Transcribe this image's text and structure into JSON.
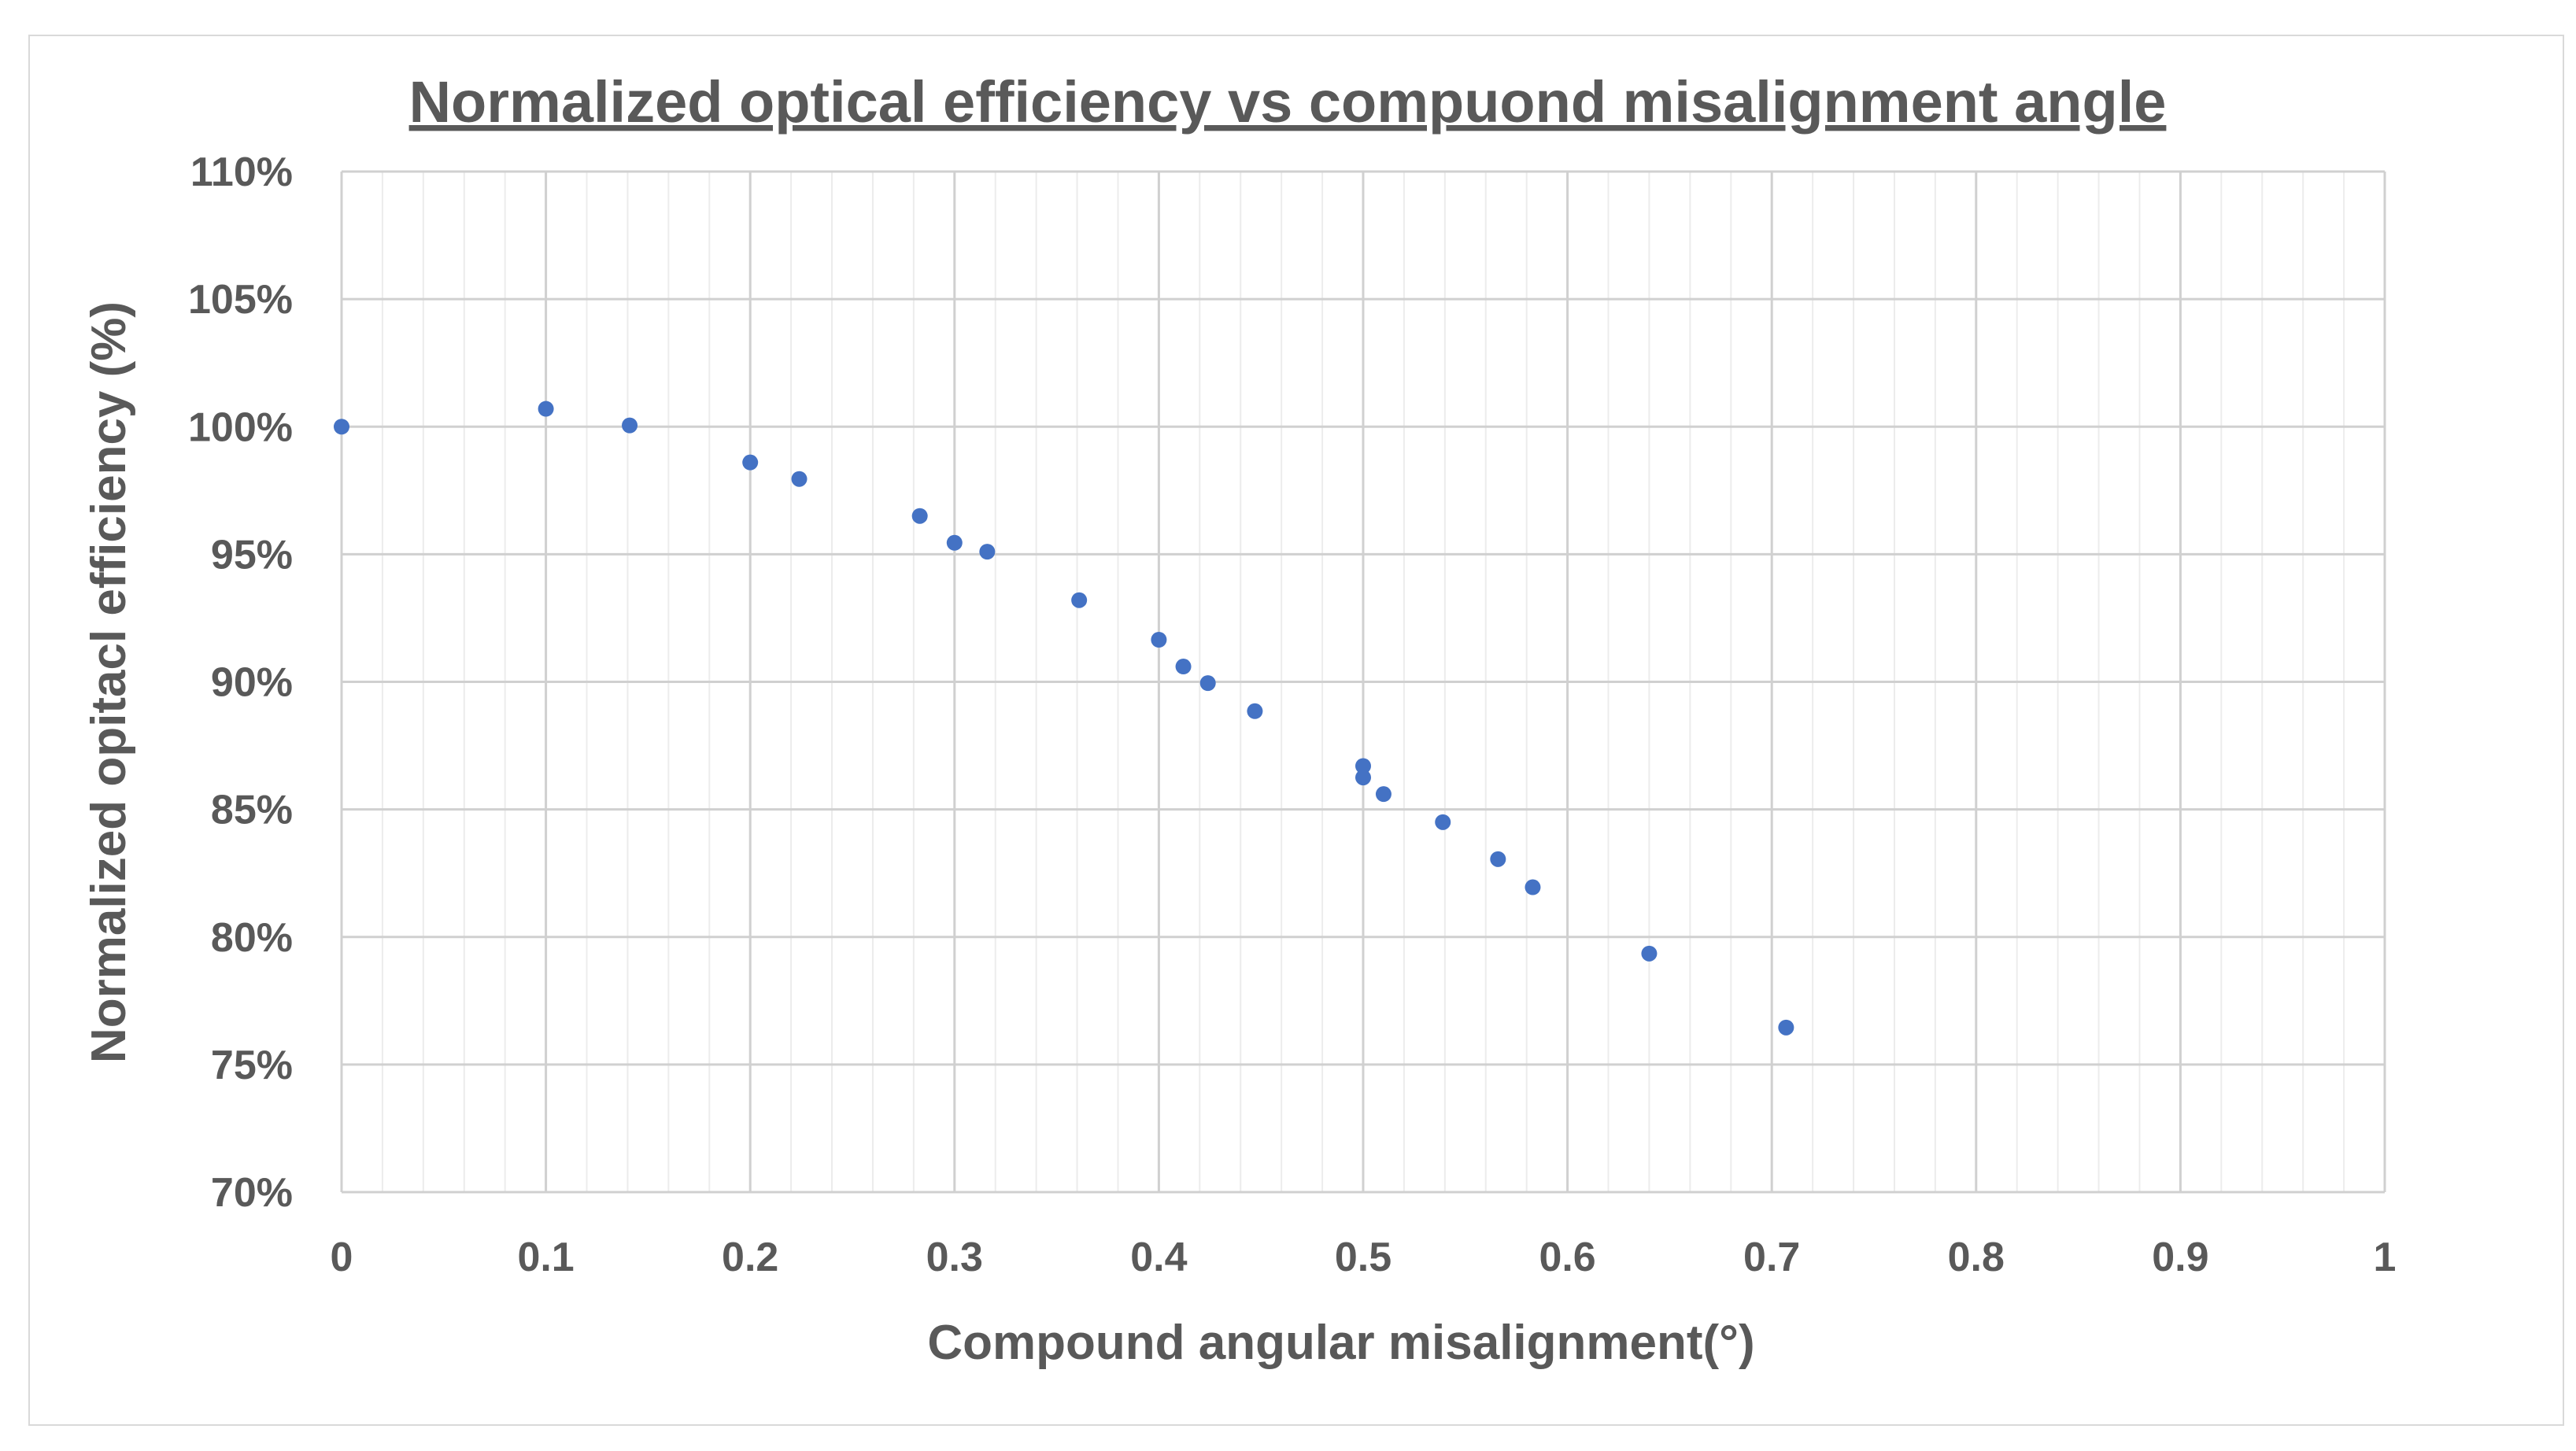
{
  "chart_data": {
    "type": "scatter",
    "title": "Normalized optical efficiency vs compuond misalignment angle",
    "xlabel": "Compound angular misalignment(°)",
    "ylabel": "Normalized opitacl efficiency (%)",
    "xlim": [
      0,
      1
    ],
    "ylim": [
      70,
      110
    ],
    "x_ticks": [
      0,
      0.1,
      0.2,
      0.3,
      0.4,
      0.5,
      0.6,
      0.7,
      0.8,
      0.9,
      1
    ],
    "x_tick_labels": [
      "0",
      "0.1",
      "0.2",
      "0.3",
      "0.4",
      "0.5",
      "0.6",
      "0.7",
      "0.8",
      "0.9",
      "1"
    ],
    "y_ticks": [
      70,
      75,
      80,
      85,
      90,
      95,
      100,
      105,
      110
    ],
    "y_tick_labels": [
      "70%",
      "75%",
      "80%",
      "85%",
      "90%",
      "95%",
      "100%",
      "105%",
      "110%"
    ],
    "x_minor_step": 0.02,
    "grid": true,
    "legend": "none",
    "marker_color": "#4472c4",
    "series": [
      {
        "x": [
          0,
          0.1,
          0.141,
          0.2,
          0.224,
          0.283,
          0.3,
          0.316,
          0.361,
          0.4,
          0.412,
          0.424,
          0.447,
          0.5,
          0.5,
          0.51,
          0.539,
          0.566,
          0.583,
          0.64,
          0.707
        ],
        "y": [
          100.0,
          100.7,
          100.05,
          98.6,
          97.95,
          96.5,
          95.45,
          95.1,
          93.2,
          91.65,
          90.6,
          89.95,
          88.85,
          86.7,
          86.25,
          85.6,
          84.5,
          83.05,
          81.95,
          79.35,
          76.45
        ]
      }
    ]
  }
}
